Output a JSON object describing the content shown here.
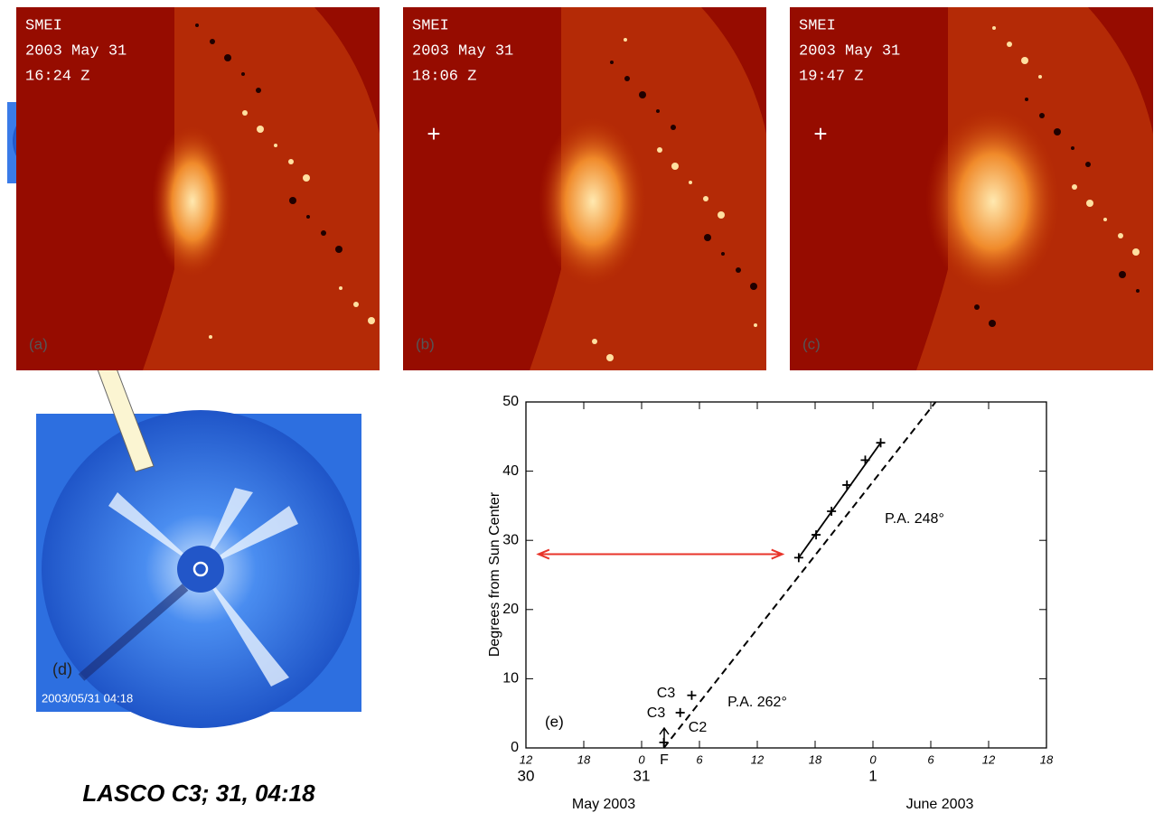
{
  "panels": [
    {
      "label": "(a)",
      "instrument": "SMEI",
      "date": "2003 May 31",
      "time": "16:24 Z"
    },
    {
      "label": "(b)",
      "instrument": "SMEI",
      "date": "2003 May 31",
      "time": "18:06 Z"
    },
    {
      "label": "(c)",
      "instrument": "SMEI",
      "date": "2003 May 31",
      "time": "19:47 Z"
    }
  ],
  "lasco": {
    "label": "(d)",
    "timestamp": "2003/05/31 04:18",
    "caption": "LASCO C3; 31, 04:18"
  },
  "chart_data": {
    "type": "scatter",
    "panel_label": "(e)",
    "ylabel": "Degrees from Sun Center",
    "x": [
      26.3,
      28.0,
      29.2,
      40.3,
      42.1,
      43.7,
      45.3,
      47.2,
      48.8
    ],
    "values": [
      0.8,
      5.1,
      7.6,
      27.5,
      30.8,
      34.2,
      38.0,
      41.6,
      44.1
    ],
    "xlim": [
      12,
      66
    ],
    "ylim": [
      0,
      50
    ],
    "xticks": [
      {
        "value": 12,
        "label": "12"
      },
      {
        "value": 18,
        "label": "18"
      },
      {
        "value": 24,
        "label": "0"
      },
      {
        "value": 30,
        "label": "6"
      },
      {
        "value": 36,
        "label": "12"
      },
      {
        "value": 42,
        "label": "18"
      },
      {
        "value": 48,
        "label": "0"
      },
      {
        "value": 54,
        "label": "6"
      },
      {
        "value": 60,
        "label": "12"
      },
      {
        "value": 66,
        "label": "18"
      }
    ],
    "date_ticks": [
      {
        "value": 12,
        "label": "30"
      },
      {
        "value": 24,
        "label": "31"
      },
      {
        "value": 48,
        "label": "1"
      }
    ],
    "month_labels": [
      "May 2003",
      "June 2003"
    ],
    "yticks": [
      0,
      10,
      20,
      30,
      40,
      50
    ],
    "fit_lines": [
      {
        "style": "dashed",
        "x": [
          26.3,
          54.5
        ],
        "values": [
          0,
          50
        ]
      },
      {
        "style": "solid",
        "x": [
          40.3,
          48.8
        ],
        "values": [
          27.5,
          44.1
        ]
      }
    ],
    "arrow": {
      "x": [
        13.3,
        38.6
      ],
      "value": 28,
      "color": "#e8342a"
    },
    "annotations": [
      "C3",
      "C3",
      "C2",
      "F",
      "P.A. 262°",
      "P.A. 248°"
    ]
  }
}
